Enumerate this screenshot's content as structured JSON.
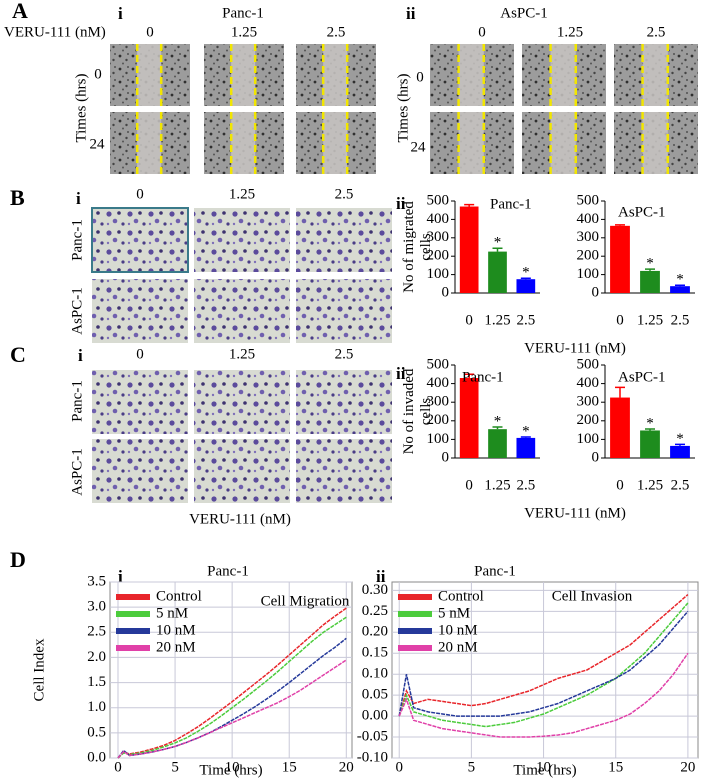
{
  "panel_a": {
    "letter": "A",
    "left_numeral": "i",
    "right_numeral": "ii",
    "left_title": "Panc-1",
    "right_title": "AsPC-1",
    "treatment": "VERU-111 (nM)",
    "doses_left": [
      "0",
      "1.25",
      "2.5"
    ],
    "doses_right": [
      "0",
      "1.25",
      "2.5"
    ],
    "time_label_left": "Times (hrs)",
    "time_label_right": "Times (hrs)",
    "times_left": [
      "0",
      "24"
    ],
    "times_right": [
      "0",
      "24"
    ]
  },
  "panel_b": {
    "letter": "B",
    "numeral": "i",
    "doses": [
      "0",
      "1.25",
      "2.5"
    ],
    "rows": [
      "Panc-1",
      "AsPC-1"
    ],
    "chart_numeral": "ii"
  },
  "panel_c": {
    "letter": "C",
    "numeral": "i",
    "doses": [
      "0",
      "1.25",
      "2.5"
    ],
    "rows": [
      "Panc-1",
      "AsPC-1"
    ],
    "chart_numeral": "ii",
    "treatment": "VERU-111 (nM)"
  },
  "panel_d": {
    "letter": "D",
    "left_numeral": "i",
    "right_numeral": "ii"
  },
  "chart_data": [
    {
      "type": "bar",
      "title": "Panc-1",
      "ylabel": "No of migrated cells",
      "xlabel": "VERU-111 (nM)",
      "categories": [
        "0",
        "1.25",
        "2.5"
      ],
      "values": [
        470,
        225,
        75
      ],
      "errors": [
        10,
        18,
        5
      ],
      "significance": [
        null,
        "*",
        "*"
      ],
      "colors": [
        "#ff0000",
        "#1e8c1e",
        "#0000ff"
      ],
      "ylim": [
        0,
        500
      ],
      "yticks": [
        0,
        100,
        200,
        300,
        400,
        500
      ]
    },
    {
      "type": "bar",
      "title": "AsPC-1",
      "categories": [
        "0",
        "1.25",
        "2.5"
      ],
      "values": [
        365,
        120,
        37
      ],
      "errors": [
        5,
        10,
        5
      ],
      "significance": [
        null,
        "*",
        "*"
      ],
      "colors": [
        "#ff0000",
        "#1e8c1e",
        "#0000ff"
      ],
      "ylim": [
        0,
        500
      ],
      "yticks": [
        0,
        100,
        200,
        300,
        400,
        500
      ]
    },
    {
      "type": "bar",
      "title": "Panc-1",
      "ylabel": "No of invaded cells",
      "xlabel": "VERU-111 (nM)",
      "categories": [
        "0",
        "1.25",
        "2.5"
      ],
      "values": [
        430,
        155,
        108
      ],
      "errors": [
        20,
        12,
        5
      ],
      "significance": [
        null,
        "*",
        "*"
      ],
      "colors": [
        "#ff0000",
        "#1e8c1e",
        "#0000ff"
      ],
      "ylim": [
        0,
        500
      ],
      "yticks": [
        0,
        100,
        200,
        300,
        400,
        500
      ]
    },
    {
      "type": "bar",
      "title": "AsPC-1",
      "categories": [
        "0",
        "1.25",
        "2.5"
      ],
      "values": [
        325,
        148,
        65
      ],
      "errors": [
        55,
        8,
        8
      ],
      "significance": [
        null,
        "*",
        "*"
      ],
      "colors": [
        "#ff0000",
        "#1e8c1e",
        "#0000ff"
      ],
      "ylim": [
        0,
        500
      ],
      "yticks": [
        0,
        100,
        200,
        300,
        400,
        500
      ]
    },
    {
      "type": "line",
      "title": "Panc-1",
      "annotation": "Cell Migration",
      "xlabel": "Time (hrs)",
      "ylabel": "Cell Index",
      "grid": true,
      "legend": "top-left",
      "x": [
        0,
        0.5,
        1,
        2,
        3,
        4,
        5,
        6,
        7,
        8,
        9,
        10,
        11,
        12,
        13,
        14,
        15,
        16,
        17,
        18,
        19,
        20
      ],
      "series": [
        {
          "name": "Control",
          "color": "#e8262b",
          "values": [
            0,
            0.12,
            0.08,
            0.12,
            0.18,
            0.25,
            0.35,
            0.48,
            0.62,
            0.78,
            0.95,
            1.12,
            1.3,
            1.48,
            1.66,
            1.85,
            2.05,
            2.25,
            2.45,
            2.65,
            2.82,
            2.98
          ]
        },
        {
          "name": "5 nM",
          "color": "#4ccc3c",
          "values": [
            0,
            0.1,
            0.07,
            0.1,
            0.15,
            0.22,
            0.3,
            0.4,
            0.53,
            0.67,
            0.83,
            1.0,
            1.17,
            1.35,
            1.53,
            1.72,
            1.92,
            2.12,
            2.32,
            2.5,
            2.65,
            2.8
          ]
        },
        {
          "name": "10 nM",
          "color": "#25399a",
          "values": [
            0,
            0.15,
            0.05,
            0.08,
            0.12,
            0.17,
            0.23,
            0.31,
            0.4,
            0.5,
            0.62,
            0.75,
            0.88,
            1.02,
            1.17,
            1.33,
            1.5,
            1.68,
            1.86,
            2.04,
            2.2,
            2.38
          ]
        },
        {
          "name": "20 nM",
          "color": "#e040a8",
          "values": [
            0,
            0.13,
            0.05,
            0.08,
            0.12,
            0.17,
            0.23,
            0.31,
            0.4,
            0.5,
            0.6,
            0.7,
            0.8,
            0.9,
            1.0,
            1.1,
            1.22,
            1.35,
            1.5,
            1.65,
            1.8,
            1.95
          ]
        }
      ],
      "xlim": [
        -0.7,
        20.5
      ],
      "xticks": [
        0,
        5,
        10,
        15,
        20
      ],
      "ylim": [
        0,
        3.5
      ],
      "yticks": [
        {
          "value": 0,
          "label": "0.0"
        },
        0.5,
        {
          "value": 1,
          "label": "1.0"
        },
        1.5,
        {
          "value": 2,
          "label": "2.0"
        },
        2.5,
        {
          "value": 3,
          "label": "3.0"
        },
        3.5
      ]
    },
    {
      "type": "line",
      "title": "Panc-1",
      "annotation": "Cell Invasion",
      "xlabel": "Time (hrs)",
      "grid": true,
      "legend": "top-left",
      "x": [
        0,
        0.5,
        1,
        2,
        3,
        4,
        5,
        6,
        7,
        8,
        9,
        10,
        11,
        12,
        13,
        14,
        15,
        16,
        17,
        18,
        19,
        20
      ],
      "series": [
        {
          "name": "Control",
          "color": "#e8262b",
          "values": [
            0,
            0.06,
            0.03,
            0.04,
            0.035,
            0.03,
            0.025,
            0.03,
            0.04,
            0.05,
            0.06,
            0.075,
            0.09,
            0.1,
            0.11,
            0.13,
            0.15,
            0.17,
            0.2,
            0.23,
            0.26,
            0.29
          ]
        },
        {
          "name": "5 nM",
          "color": "#4ccc3c",
          "values": [
            0,
            0.05,
            0.01,
            0,
            -0.01,
            -0.015,
            -0.02,
            -0.025,
            -0.02,
            -0.015,
            -0.005,
            0.005,
            0.02,
            0.035,
            0.05,
            0.07,
            0.09,
            0.12,
            0.15,
            0.19,
            0.23,
            0.27
          ]
        },
        {
          "name": "10 nM",
          "color": "#25399a",
          "values": [
            0,
            0.1,
            0.02,
            0.01,
            0.005,
            0,
            0,
            0,
            0,
            0.005,
            0.01,
            0.02,
            0.03,
            0.045,
            0.06,
            0.075,
            0.09,
            0.11,
            0.14,
            0.17,
            0.21,
            0.25
          ]
        },
        {
          "name": "20 nM",
          "color": "#e040a8",
          "values": [
            0,
            0.04,
            -0.01,
            -0.02,
            -0.03,
            -0.035,
            -0.04,
            -0.045,
            -0.05,
            -0.05,
            -0.05,
            -0.048,
            -0.045,
            -0.04,
            -0.03,
            -0.02,
            -0.01,
            0.005,
            0.03,
            0.06,
            0.1,
            0.15
          ]
        }
      ],
      "xlim": [
        -0.5,
        20.7
      ],
      "xticks": [
        0,
        5,
        10,
        15,
        20
      ],
      "ylim": [
        -0.1,
        0.32
      ],
      "yticks": [
        {
          "value": -0.1,
          "label": "-0.10"
        },
        -0.05,
        {
          "value": 0,
          "label": "0.00"
        },
        0.05,
        {
          "value": 0.1,
          "label": "0.10"
        },
        0.15,
        {
          "value": 0.2,
          "label": "0.20"
        },
        0.25,
        {
          "value": 0.3,
          "label": "0.30"
        }
      ]
    }
  ]
}
